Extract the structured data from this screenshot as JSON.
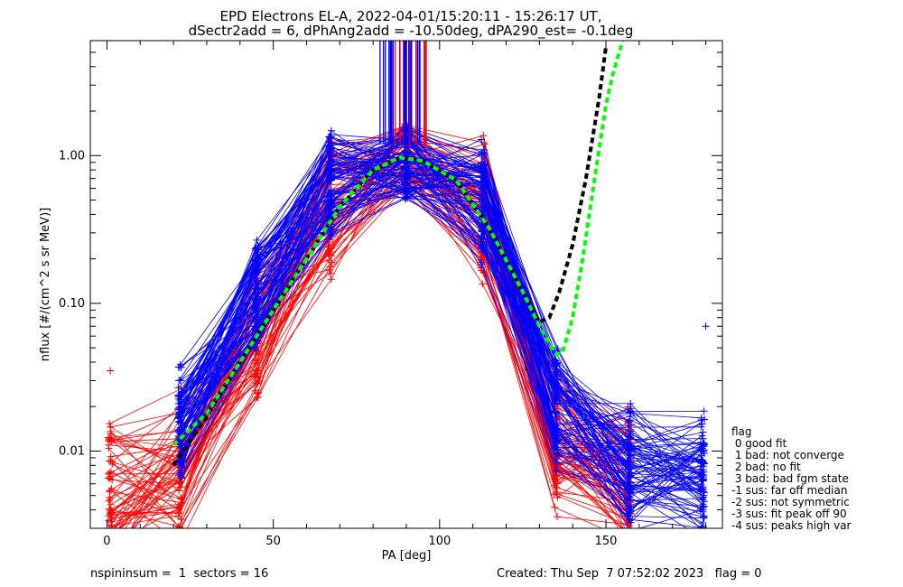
{
  "title_line1": "EPD Electrons EL-A, 2022-04-01/15:20:11 - 15:26:17 UT,",
  "title_line2": "dSectr2add = 6, dPhAng2add = -10.50deg, dPA290_est=  -0.1deg",
  "footer": {
    "left": "nspininsum =  1  sectors = 16",
    "right": "Created: Thu Sep  7 07:52:02 2023   flag = 0"
  },
  "legend": {
    "title": "flag",
    "items": [
      " 0 good fit",
      " 1 bad: not converge",
      " 2 bad: no fit",
      " 3 bad: bad fgm state",
      "-1 sus: far off median",
      "-2 sus: not symmetric",
      "-3 sus: fit peak off 90",
      "-4 sus: peaks high var"
    ]
  },
  "colors": {
    "red": "#ff0000",
    "blue": "#0000ff",
    "green": "#00ff00",
    "black": "#000000"
  },
  "chart_data": {
    "type": "line",
    "xlabel": "PA [deg]",
    "ylabel": "nflux [#/(cm^2 s sr MeV)]",
    "xlim": [
      -5,
      185
    ],
    "ylim": [
      0.003,
      6.0
    ],
    "yscale": "log",
    "xticks": [
      0,
      50,
      100,
      150
    ],
    "xtick_labels": [
      "0",
      "50",
      "100",
      "150"
    ],
    "yticks": [
      0.01,
      0.1,
      1.0
    ],
    "ytick_labels": [
      "0.01",
      "0.10",
      "1.00"
    ],
    "pa_bins": [
      1,
      22,
      45,
      67,
      90,
      113,
      135,
      157,
      179
    ],
    "red_series_median": [
      0.005,
      0.008,
      0.06,
      0.45,
      0.95,
      0.45,
      0.012,
      0.006,
      null
    ],
    "blue_series_median": [
      null,
      0.015,
      0.12,
      0.6,
      0.92,
      0.5,
      0.02,
      0.008,
      0.007
    ],
    "green_fit": {
      "name": "fit",
      "x": [
        20,
        30,
        40,
        50,
        60,
        70,
        80,
        88,
        95,
        105,
        115,
        125,
        130,
        135,
        137,
        140,
        143,
        147,
        150,
        152,
        155
      ],
      "y": [
        0.011,
        0.018,
        0.04,
        0.09,
        0.2,
        0.45,
        0.8,
        0.97,
        0.92,
        0.68,
        0.32,
        0.12,
        0.07,
        0.045,
        0.047,
        0.08,
        0.2,
        0.8,
        2.2,
        3.5,
        6.0
      ]
    },
    "black_fit": {
      "name": "fit_alt",
      "x": [
        20,
        30,
        40,
        50,
        60,
        70,
        80,
        88,
        95,
        105,
        115,
        125,
        130,
        133,
        136,
        140,
        144,
        148,
        150
      ],
      "y": [
        0.008,
        0.017,
        0.04,
        0.09,
        0.2,
        0.45,
        0.8,
        0.97,
        0.92,
        0.68,
        0.32,
        0.12,
        0.075,
        0.08,
        0.12,
        0.25,
        0.7,
        2.5,
        5.5
      ]
    },
    "high_spikes": {
      "x_range": [
        82,
        96
      ],
      "y_top": 6.0,
      "y_bottom": 1.2
    },
    "outlier_points": [
      {
        "x": 180,
        "y": 0.07,
        "series": "blue"
      },
      {
        "x": 1,
        "y": 0.035,
        "series": "red"
      }
    ]
  }
}
